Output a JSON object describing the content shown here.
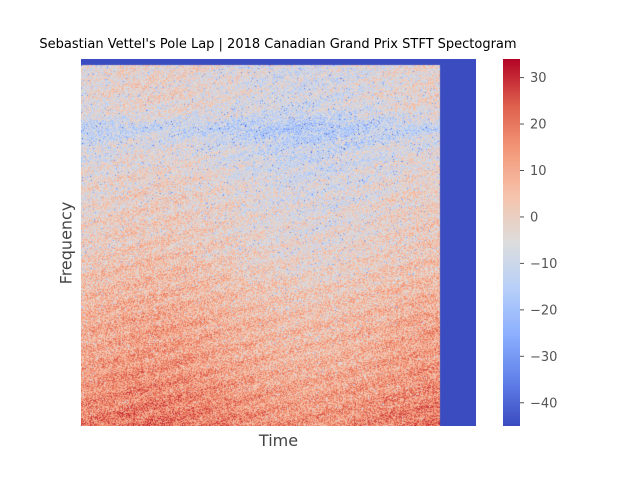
{
  "chart_data": {
    "type": "heatmap",
    "title": "Sebastian Vettel's Pole Lap | 2018 Canadian Grand Prix STFT Spectogram",
    "xlabel": "Time",
    "ylabel": "Frequency",
    "colormap": "coolwarm",
    "colorbar": {
      "vmin": -45,
      "vmax": 34,
      "ticks": [
        30,
        20,
        10,
        0,
        -10,
        -20,
        -30,
        -40
      ],
      "tick_labels": [
        "30",
        "20",
        "10",
        "0",
        "−10",
        "−20",
        "−30",
        "−40"
      ]
    },
    "x_ticks_visible": false,
    "y_ticks_visible": false,
    "grid": false,
    "data_extent_fraction_of_time_axis": 0.91,
    "padding_value": -45,
    "frequency_profile_low_to_high_db": [
      18,
      16,
      14,
      12,
      10,
      9,
      8,
      6,
      4,
      2,
      0,
      -1,
      -2,
      -3,
      -4,
      -6,
      -8,
      -14,
      -6,
      -4,
      -5,
      -3
    ]
  }
}
